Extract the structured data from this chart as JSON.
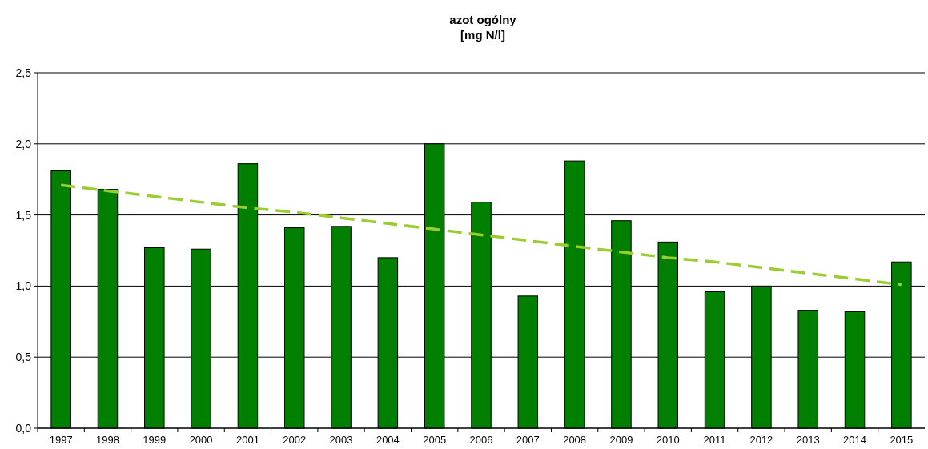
{
  "chart_data": {
    "type": "bar",
    "title": "azot ogólny",
    "subtitle": "[mg N/l]",
    "categories": [
      "1997",
      "1998",
      "1999",
      "2000",
      "2001",
      "2002",
      "2003",
      "2004",
      "2005",
      "2006",
      "2007",
      "2008",
      "2009",
      "2010",
      "2011",
      "2012",
      "2013",
      "2014",
      "2015"
    ],
    "series": [
      {
        "color": "#007f00",
        "values": [
          1.81,
          1.68,
          1.27,
          1.26,
          1.86,
          1.41,
          1.42,
          1.2,
          2.0,
          1.59,
          0.93,
          1.88,
          1.46,
          1.31,
          0.96,
          1.0,
          0.83,
          0.82,
          1.17
        ]
      },
      {
        "type": "line",
        "color": "#9acd32",
        "line_style": "dashed",
        "values": [
          1.71,
          1.67,
          1.63,
          1.59,
          1.55,
          1.52,
          1.48,
          1.44,
          1.4,
          1.36,
          1.32,
          1.28,
          1.24,
          1.2,
          1.17,
          1.13,
          1.09,
          1.05,
          1.01
        ]
      }
    ],
    "ylim": [
      0,
      2.5
    ],
    "yticks": [
      {
        "value": 0,
        "label": "0,0"
      },
      {
        "value": 0.5,
        "label": "0,5"
      },
      {
        "value": 1,
        "label": "1,0"
      },
      {
        "value": 1.5,
        "label": "1,5"
      },
      {
        "value": 2,
        "label": "2,0"
      },
      {
        "value": 2.5,
        "label": "2,5"
      }
    ],
    "grid": "y"
  }
}
